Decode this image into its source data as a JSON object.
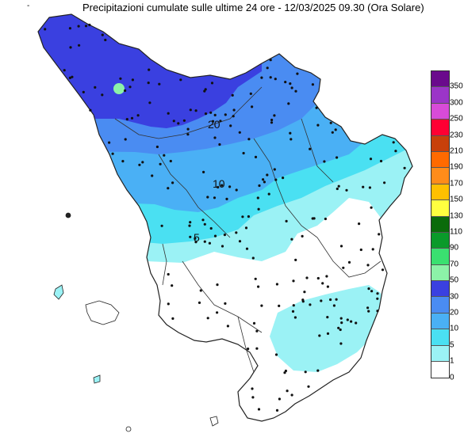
{
  "header": {
    "dash": "-",
    "title": "Precipitazioni cumulate sulle ultime 24 ore - 12/03/2025 09.30 (Ora Solare)"
  },
  "legend": {
    "swatch_colors": [
      "#6a0a8c",
      "#9b35c8",
      "#d84bd8",
      "#ff0033",
      "#c8400a",
      "#ff6a00",
      "#ff8c1a",
      "#ffc000",
      "#ffff40",
      "#0b6b0b",
      "#0a9a2a",
      "#3ae070",
      "#8cf2a8",
      "#3a40e0",
      "#4a8cf2",
      "#4ab0f5",
      "#4ae0f2",
      "#9bf2f5",
      "#ffffff"
    ],
    "tick_labels": [
      "350",
      "300",
      "250",
      "230",
      "210",
      "190",
      "170",
      "150",
      "130",
      "110",
      "90",
      "70",
      "50",
      "30",
      "20",
      "10",
      "5",
      "1",
      "0"
    ]
  },
  "contour_labels": [
    "20",
    "10",
    "5"
  ],
  "colors": {
    "c30": "#3a40e0",
    "c20": "#4a8cf2",
    "c10": "#4ab0f5",
    "c5": "#4ae0f2",
    "c1": "#9bf2f5",
    "c0": "#ffffff"
  }
}
